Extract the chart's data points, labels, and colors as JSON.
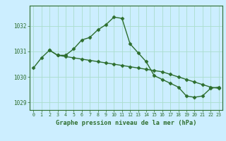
{
  "line1_x": [
    0,
    1,
    2,
    3,
    4,
    5,
    6,
    7,
    8,
    9,
    10,
    11,
    12,
    13,
    14,
    15,
    16,
    17,
    18,
    19,
    20,
    21,
    22,
    23
  ],
  "line1_y": [
    1030.35,
    1030.75,
    1031.05,
    1030.85,
    1030.85,
    1031.1,
    1031.45,
    1031.55,
    1031.85,
    1032.05,
    1032.35,
    1032.3,
    1031.3,
    1030.95,
    1030.6,
    1030.05,
    1029.9,
    1029.75,
    1029.6,
    1029.25,
    1029.2,
    1029.25,
    1029.55,
    1029.6
  ],
  "line2_x": [
    2,
    3,
    4,
    5,
    6,
    7,
    8,
    9,
    10,
    11,
    12,
    13,
    14,
    15,
    16,
    17,
    18,
    19,
    20,
    21,
    22,
    23
  ],
  "line2_y": [
    1031.05,
    1030.85,
    1030.8,
    1030.75,
    1030.7,
    1030.65,
    1030.6,
    1030.55,
    1030.5,
    1030.45,
    1030.4,
    1030.35,
    1030.3,
    1030.25,
    1030.2,
    1030.1,
    1030.0,
    1029.9,
    1029.8,
    1029.7,
    1029.6,
    1029.55
  ],
  "line_color": "#2d6e2d",
  "bg_color": "#cceeff",
  "grid_color": "#aaddcc",
  "xlabel": "Graphe pression niveau de la mer (hPa)",
  "ylim": [
    1028.7,
    1032.8
  ],
  "xlim": [
    -0.5,
    23.5
  ],
  "yticks": [
    1029,
    1030,
    1031,
    1032
  ],
  "xticks": [
    0,
    1,
    2,
    3,
    4,
    5,
    6,
    7,
    8,
    9,
    10,
    11,
    12,
    13,
    14,
    15,
    16,
    17,
    18,
    19,
    20,
    21,
    22,
    23
  ],
  "marker": "D",
  "markersize": 2.5,
  "linewidth": 1.0
}
